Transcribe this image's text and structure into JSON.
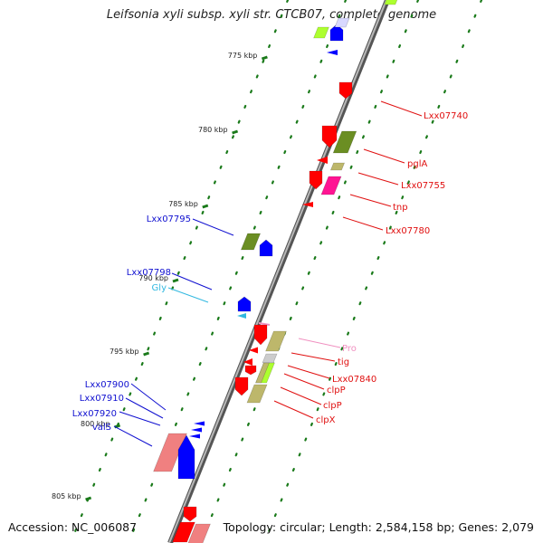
{
  "title": "Leifsonia xyli subsp. xyli str. CTCB07, complete genome",
  "footer": {
    "accession": "Accession: NC_006087",
    "summary": "Topology: circular; Length: 2,584,158 bp; Genes: 2,079"
  },
  "colors": {
    "forward_label": "#1010d0",
    "reverse_label": "#e01010",
    "trna_label": "#30b8e0",
    "pseudo_label": "#f090c0",
    "cds_red": "#ff0000",
    "cds_blue": "#0000ff",
    "olive": "#6b8e23",
    "khaki": "#bdb76b",
    "lime": "#adff2f",
    "salmon": "#f08080",
    "grey": "#cccccc",
    "ruler_ticks": "#1a7a1a",
    "backbone": "#808080"
  },
  "ruler": [
    "775 kbp",
    "780 kbp",
    "785 kbp",
    "790 kbp",
    "795 kbp",
    "800 kbp",
    "805 kbp"
  ],
  "labels": [
    {
      "text": "Lxx07740",
      "strand": "reverse"
    },
    {
      "text": "pglA",
      "strand": "reverse"
    },
    {
      "text": "Lxx07755",
      "strand": "reverse"
    },
    {
      "text": "tnp",
      "strand": "reverse"
    },
    {
      "text": "Lxx07780",
      "strand": "reverse"
    },
    {
      "text": "Lxx07795",
      "strand": "forward"
    },
    {
      "text": "Lxx07798",
      "strand": "forward"
    },
    {
      "text": "Gly",
      "strand": "trna"
    },
    {
      "text": "Pro",
      "strand": "pseudo"
    },
    {
      "text": "tig",
      "strand": "reverse"
    },
    {
      "text": "Lxx07840",
      "strand": "reverse"
    },
    {
      "text": "clpP",
      "strand": "reverse"
    },
    {
      "text": "clpP",
      "strand": "reverse"
    },
    {
      "text": "clpX",
      "strand": "reverse"
    },
    {
      "text": "Lxx07900",
      "strand": "forward"
    },
    {
      "text": "Lxx07910",
      "strand": "forward"
    },
    {
      "text": "Lxx07920",
      "strand": "forward"
    },
    {
      "text": "valS",
      "strand": "forward"
    }
  ]
}
